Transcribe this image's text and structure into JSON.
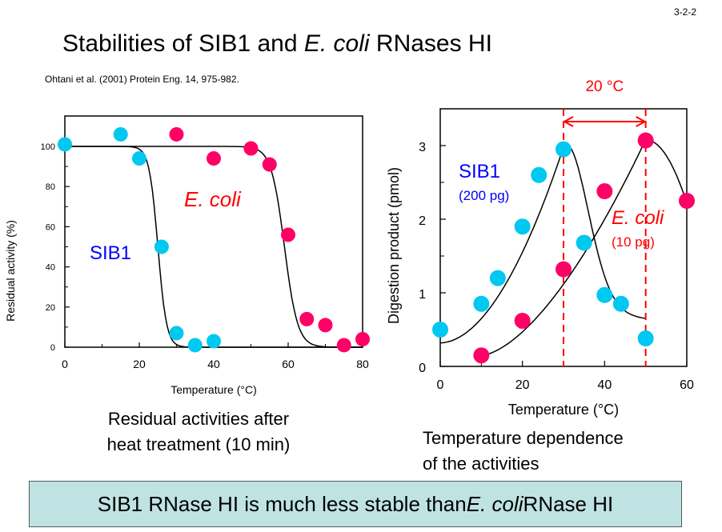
{
  "slide_number": "3-2-2",
  "title": {
    "part1": "Stabilities of SIB1 and ",
    "italic": "E. coli",
    "part2": " RNases HI"
  },
  "citation": "Ohtani et al. (2001) Protein Eng. 14, 975-982.",
  "caption_left": [
    "Residual activities after",
    "heat treatment (10 min)"
  ],
  "caption_right": [
    "Temperature dependence",
    "of the activities"
  ],
  "conclusion": {
    "part1": "SIB1 RNase HI is much less stable than ",
    "italic": "E. coli",
    "part2": " RNase HI"
  },
  "colors": {
    "sib1": "#00c8f0",
    "ecoli": "#ff0066",
    "sib1_label": "#0000ff",
    "ecoli_label": "#ff0000",
    "box": "#bfe3e3"
  },
  "chart_data": [
    {
      "type": "scatter",
      "title": "Residual activities after heat treatment (10 min)",
      "xlabel": "Temperature (°C)",
      "ylabel": "Residual activity (%)",
      "xlim": [
        0,
        80
      ],
      "ylim": [
        0,
        115
      ],
      "xticks": [
        "0",
        "20",
        "40",
        "60",
        "80"
      ],
      "yticks": [
        "0",
        "20",
        "40",
        "60",
        "80",
        "100"
      ],
      "series": [
        {
          "name": "SIB1",
          "color": "#00c8f0",
          "x": [
            0,
            15,
            20,
            26,
            30,
            35,
            40
          ],
          "y": [
            101,
            106,
            94,
            50,
            7,
            1,
            3
          ],
          "fit": {
            "tm": 25,
            "k": 1.2
          }
        },
        {
          "name": "E. coli",
          "color": "#ff0066",
          "x": [
            30,
            40,
            50,
            55,
            60,
            65,
            70,
            75,
            80
          ],
          "y": [
            106,
            94,
            99,
            91,
            56,
            14,
            11,
            1,
            4
          ],
          "fit": {
            "tm": 59,
            "k": 0.9
          }
        }
      ],
      "annotations": [
        {
          "text": "SIB1",
          "color": "#0000ff"
        },
        {
          "text": "E. coli",
          "color": "#ff0000"
        }
      ]
    },
    {
      "type": "scatter",
      "title": "Temperature dependence of the activities",
      "xlabel": "Temperature (°C)",
      "ylabel": "Digestion product (pmol)",
      "xlim": [
        0,
        60
      ],
      "ylim": [
        0,
        3.5
      ],
      "xticks": [
        "0",
        "20",
        "40",
        "60"
      ],
      "yticks": [
        "0",
        "1",
        "2",
        "3"
      ],
      "series": [
        {
          "name": "SIB1 (200 pg)",
          "color": "#00c8f0",
          "x": [
            0,
            10,
            14,
            20,
            24,
            30,
            35,
            40,
            44,
            50
          ],
          "y": [
            0.5,
            0.85,
            1.2,
            1.9,
            2.6,
            2.95,
            1.68,
            0.97,
            0.85,
            0.38
          ]
        },
        {
          "name": "E. coli (10 pg)",
          "color": "#ff0066",
          "x": [
            10,
            20,
            30,
            40,
            50,
            60
          ],
          "y": [
            0.15,
            0.62,
            1.32,
            2.38,
            3.07,
            2.25
          ]
        }
      ],
      "annotations": [
        {
          "text": "20 °C",
          "color": "#ff0000"
        },
        {
          "text": "SIB1",
          "color": "#0000ff"
        },
        {
          "text": "(200 pg)",
          "color": "#0000ff"
        },
        {
          "text": "E. coli",
          "color": "#ff0000"
        },
        {
          "text": "(10 pg)",
          "color": "#ff0000"
        }
      ],
      "reference_lines_x": [
        30,
        50
      ]
    }
  ]
}
